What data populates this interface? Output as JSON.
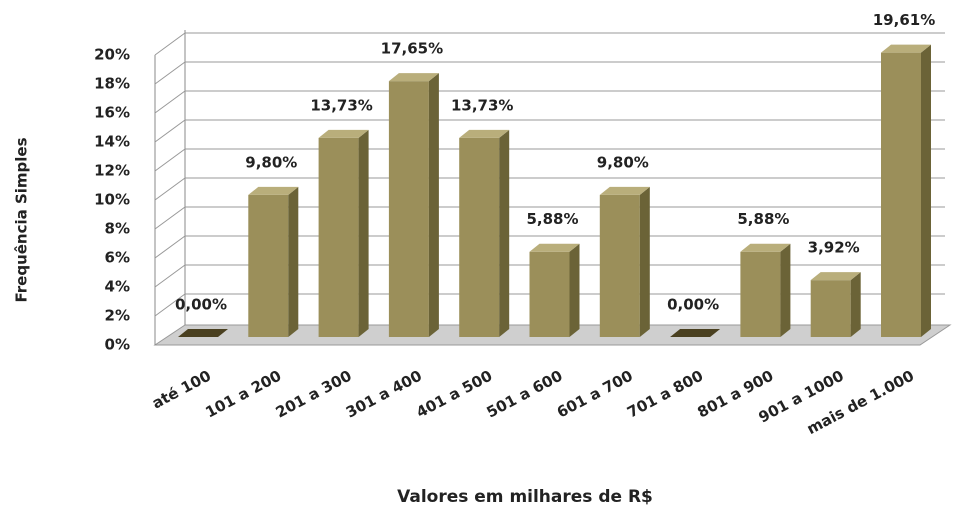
{
  "chart_data": {
    "type": "bar3d",
    "y_label": "Frequência Simples",
    "x_label": "Valores em milhares de R$",
    "categories": [
      "até 100",
      "101 a 200",
      "201 a 300",
      "301 a 400",
      "401 a 500",
      "501 a 600",
      "601 a 700",
      "701 a 800",
      "801 a 900",
      "901 a 1000",
      "mais de 1.000"
    ],
    "values": [
      0,
      9.8,
      13.73,
      17.65,
      13.73,
      5.88,
      9.8,
      0,
      5.88,
      3.92,
      19.61
    ],
    "value_labels": [
      "0,00%",
      "9,80%",
      "13,73%",
      "17,65%",
      "13,73%",
      "5,88%",
      "9,80%",
      "0,00%",
      "5,88%",
      "3,92%",
      "19,61%"
    ],
    "color": "#9b8f5a",
    "ylim": [
      0,
      20
    ],
    "yticks": [
      {
        "value": 0,
        "label": "0%"
      },
      {
        "value": 2,
        "label": "2%"
      },
      {
        "value": 4,
        "label": "4%"
      },
      {
        "value": 6,
        "label": "6%"
      },
      {
        "value": 8,
        "label": "8%"
      },
      {
        "value": 10,
        "label": "10%"
      },
      {
        "value": 12,
        "label": "12%"
      },
      {
        "value": 14,
        "label": "14%"
      },
      {
        "value": 16,
        "label": "16%"
      },
      {
        "value": 18,
        "label": "18%"
      },
      {
        "value": 20,
        "label": "20%"
      }
    ],
    "grid": true
  }
}
